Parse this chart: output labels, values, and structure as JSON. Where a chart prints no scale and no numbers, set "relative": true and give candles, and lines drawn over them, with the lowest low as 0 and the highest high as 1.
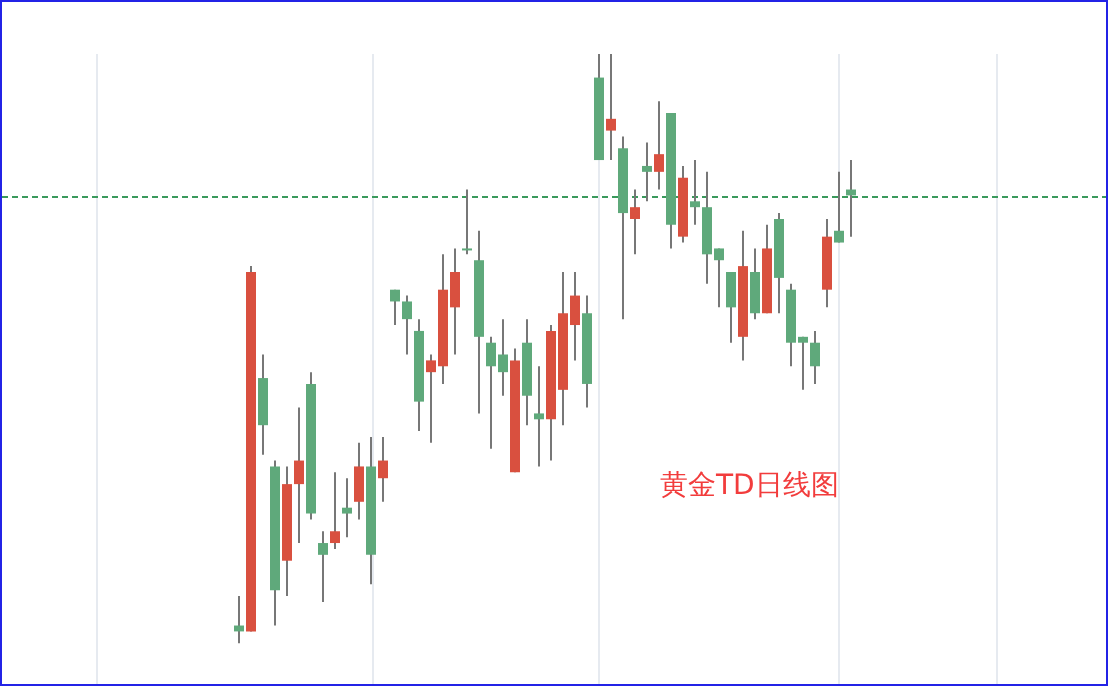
{
  "chart_data": {
    "type": "candlestick",
    "relative": true,
    "annotations": [
      "黄金TD日线图"
    ],
    "ref_lines": [
      {
        "axis": "y",
        "value": 0.76,
        "color": "#3a9a5c",
        "line_style": "dashed"
      }
    ],
    "categories": [
      null,
      null,
      null,
      null,
      null,
      null,
      null,
      null,
      null,
      null,
      null,
      null,
      null,
      null,
      null,
      null,
      null,
      null,
      null,
      null,
      null,
      null,
      null,
      null,
      null,
      null,
      null,
      null,
      null,
      null,
      null,
      null,
      null,
      null,
      null,
      null,
      null,
      null,
      null,
      null,
      null,
      null,
      null,
      null,
      null,
      null,
      null,
      null,
      null,
      null,
      null,
      null
    ],
    "ohlc": [
      [
        0.03,
        0.08,
        0,
        0.02
      ],
      [
        0.02,
        0.64,
        0.02,
        0.63
      ],
      [
        0.45,
        0.49,
        0.32,
        0.37
      ],
      [
        0.3,
        0.31,
        0.03,
        0.09
      ],
      [
        0.14,
        0.3,
        0.08,
        0.27
      ],
      [
        0.27,
        0.4,
        0.17,
        0.31
      ],
      [
        0.44,
        0.46,
        0.21,
        0.22
      ],
      [
        0.17,
        0.19,
        0.07,
        0.15
      ],
      [
        0.17,
        0.29,
        0.16,
        0.19
      ],
      [
        0.23,
        0.28,
        0.18,
        0.22
      ],
      [
        0.24,
        0.34,
        0.21,
        0.3
      ],
      [
        0.3,
        0.35,
        0.1,
        0.15
      ],
      [
        0.28,
        0.35,
        0.24,
        0.31
      ],
      [
        0.6,
        0.6,
        0.54,
        0.58
      ],
      [
        0.58,
        0.59,
        0.49,
        0.55
      ],
      [
        0.53,
        0.55,
        0.36,
        0.41
      ],
      [
        0.46,
        0.49,
        0.34,
        0.48
      ],
      [
        0.47,
        0.66,
        0.44,
        0.6
      ],
      [
        0.57,
        0.67,
        0.49,
        0.63
      ],
      [
        0.67,
        0.77,
        0.66,
        0.67
      ],
      [
        0.65,
        0.7,
        0.39,
        0.52
      ],
      [
        0.51,
        0.52,
        0.33,
        0.47
      ],
      [
        0.49,
        0.55,
        0.42,
        0.46
      ],
      [
        0.29,
        0.5,
        0.29,
        0.48
      ],
      [
        0.51,
        0.55,
        0.37,
        0.42
      ],
      [
        0.39,
        0.47,
        0.3,
        0.38
      ],
      [
        0.38,
        0.54,
        0.31,
        0.53
      ],
      [
        0.43,
        0.63,
        0.37,
        0.56
      ],
      [
        0.54,
        0.63,
        0.48,
        0.59
      ],
      [
        0.56,
        0.59,
        0.4,
        0.44
      ],
      [
        0.96,
        1.0,
        0.82,
        0.82
      ],
      [
        0.87,
        1.0,
        0.82,
        0.89
      ],
      [
        0.84,
        0.86,
        0.55,
        0.73
      ],
      [
        0.72,
        0.77,
        0.66,
        0.74
      ],
      [
        0.81,
        0.85,
        0.75,
        0.8
      ],
      [
        0.8,
        0.92,
        0.77,
        0.83
      ],
      [
        0.9,
        0.9,
        0.67,
        0.71
      ],
      [
        0.69,
        0.81,
        0.68,
        0.79
      ],
      [
        0.75,
        0.82,
        0.71,
        0.74
      ],
      [
        0.74,
        0.8,
        0.61,
        0.66
      ],
      [
        0.67,
        0.67,
        0.57,
        0.65
      ],
      [
        0.63,
        0.63,
        0.51,
        0.57
      ],
      [
        0.52,
        0.7,
        0.48,
        0.64
      ],
      [
        0.63,
        0.67,
        0.55,
        0.56
      ],
      [
        0.56,
        0.71,
        0.56,
        0.67
      ],
      [
        0.72,
        0.73,
        0.56,
        0.62
      ],
      [
        0.6,
        0.61,
        0.47,
        0.51
      ],
      [
        0.52,
        0.52,
        0.43,
        0.51
      ],
      [
        0.51,
        0.53,
        0.44,
        0.47
      ],
      [
        0.6,
        0.72,
        0.57,
        0.69
      ],
      [
        0.7,
        0.8,
        0.68,
        0.68
      ],
      [
        0.77,
        0.82,
        0.69,
        0.76
      ]
    ],
    "colors": [
      "#5fa97b",
      "#d9503f",
      "#5fa97b",
      "#5fa97b",
      "#d9503f",
      "#d9503f",
      "#5fa97b",
      "#5fa97b",
      "#d9503f",
      "#5fa97b",
      "#d9503f",
      "#5fa97b",
      "#d9503f",
      "#5fa97b",
      "#5fa97b",
      "#5fa97b",
      "#d9503f",
      "#d9503f",
      "#d9503f",
      "#5fa97b",
      "#5fa97b",
      "#5fa97b",
      "#5fa97b",
      "#d9503f",
      "#5fa97b",
      "#5fa97b",
      "#d9503f",
      "#d9503f",
      "#d9503f",
      "#5fa97b",
      "#5fa97b",
      "#d9503f",
      "#5fa97b",
      "#d9503f",
      "#5fa97b",
      "#d9503f",
      "#5fa97b",
      "#d9503f",
      "#5fa97b",
      "#5fa97b",
      "#5fa97b",
      "#5fa97b",
      "#d9503f",
      "#5fa97b",
      "#d9503f",
      "#5fa97b",
      "#5fa97b",
      "#5fa97b",
      "#5fa97b",
      "#d9503f",
      "#5fa97b",
      "#5fa97b"
    ]
  }
}
